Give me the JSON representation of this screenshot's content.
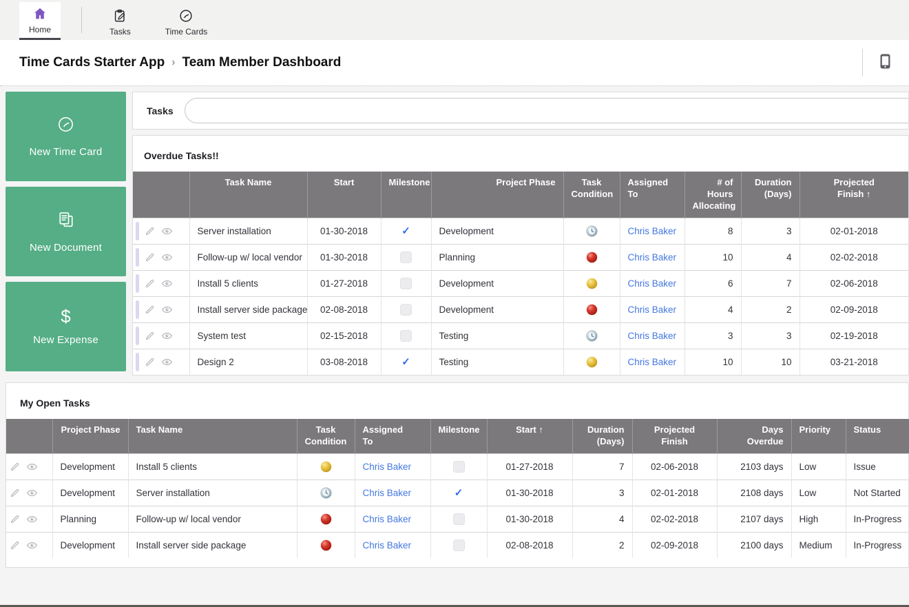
{
  "nav": {
    "tabs": [
      {
        "label": "Home",
        "icon": "home-icon",
        "active": true
      },
      {
        "label": "Tasks",
        "icon": "clipboard-pencil-icon",
        "active": false
      },
      {
        "label": "Time Cards",
        "icon": "clock-icon",
        "active": false
      }
    ]
  },
  "breadcrumb": {
    "app_name": "Time Cards Starter App",
    "separator": "›",
    "page_title": "Team Member Dashboard",
    "mobile_icon": "mobile-phone-icon"
  },
  "sidebar": {
    "buttons": [
      {
        "label": "New Time Card",
        "icon": "clock-icon"
      },
      {
        "label": "New Document",
        "icon": "documents-icon"
      },
      {
        "label": "New Expense",
        "icon": "dollar-icon"
      }
    ]
  },
  "search": {
    "label": "Tasks",
    "value": "",
    "placeholder": ""
  },
  "overdue_table": {
    "title": "Overdue Tasks!!",
    "columns": [
      "",
      "Task Name",
      "Start",
      "Milestone",
      "Project Phase",
      "Task\nCondition",
      "Assigned\nTo",
      "# of Hours\nAllocating",
      "Duration\n(Days)",
      "Projected\nFinish ↑"
    ],
    "rows": [
      {
        "task_name": "Server installation",
        "start": "01-30-2018",
        "milestone": true,
        "project_phase": "Development",
        "task_condition": "clock-ball",
        "assigned_to": "Chris Baker",
        "hours": "8",
        "duration": "3",
        "projected_finish": "02-01-2018"
      },
      {
        "task_name": "Follow-up w/ local vendor",
        "start": "01-30-2018",
        "milestone": false,
        "project_phase": "Planning",
        "task_condition": "red-ball",
        "assigned_to": "Chris Baker",
        "hours": "10",
        "duration": "4",
        "projected_finish": "02-02-2018"
      },
      {
        "task_name": "Install 5 clients",
        "start": "01-27-2018",
        "milestone": false,
        "project_phase": "Development",
        "task_condition": "yellow-ball",
        "assigned_to": "Chris Baker",
        "hours": "6",
        "duration": "7",
        "projected_finish": "02-06-2018"
      },
      {
        "task_name": "Install server side package",
        "start": "02-08-2018",
        "milestone": false,
        "project_phase": "Development",
        "task_condition": "red-ball",
        "assigned_to": "Chris Baker",
        "hours": "4",
        "duration": "2",
        "projected_finish": "02-09-2018"
      },
      {
        "task_name": "System test",
        "start": "02-15-2018",
        "milestone": false,
        "project_phase": "Testing",
        "task_condition": "clock-ball",
        "assigned_to": "Chris Baker",
        "hours": "3",
        "duration": "3",
        "projected_finish": "02-19-2018"
      },
      {
        "task_name": "Design 2",
        "start": "03-08-2018",
        "milestone": true,
        "project_phase": "Testing",
        "task_condition": "yellow-ball",
        "assigned_to": "Chris Baker",
        "hours": "10",
        "duration": "10",
        "projected_finish": "03-21-2018"
      }
    ]
  },
  "open_tasks_table": {
    "title": "My Open Tasks",
    "columns": [
      "",
      "Project Phase",
      "Task Name",
      "Task\nCondition",
      "Assigned\nTo",
      "Milestone",
      "Start ↑",
      "Duration\n(Days)",
      "Projected\nFinish",
      "Days\nOverdue",
      "Priority",
      "Status"
    ],
    "rows": [
      {
        "project_phase": "Development",
        "task_name": "Install 5 clients",
        "task_condition": "yellow-ball",
        "assigned_to": "Chris Baker",
        "milestone": false,
        "start": "01-27-2018",
        "duration": "7",
        "projected_finish": "02-06-2018",
        "days_overdue": "2103 days",
        "priority": "Low",
        "status": "Issue"
      },
      {
        "project_phase": "Development",
        "task_name": "Server installation",
        "task_condition": "clock-ball",
        "assigned_to": "Chris Baker",
        "milestone": true,
        "start": "01-30-2018",
        "duration": "3",
        "projected_finish": "02-01-2018",
        "days_overdue": "2108 days",
        "priority": "Low",
        "status": "Not Started"
      },
      {
        "project_phase": "Planning",
        "task_name": "Follow-up w/ local vendor",
        "task_condition": "red-ball",
        "assigned_to": "Chris Baker",
        "milestone": false,
        "start": "01-30-2018",
        "duration": "4",
        "projected_finish": "02-02-2018",
        "days_overdue": "2107 days",
        "priority": "High",
        "status": "In-Progress"
      },
      {
        "project_phase": "Development",
        "task_name": "Install server side package",
        "task_condition": "red-ball",
        "assigned_to": "Chris Baker",
        "milestone": false,
        "start": "02-08-2018",
        "duration": "2",
        "projected_finish": "02-09-2018",
        "days_overdue": "2100 days",
        "priority": "Medium",
        "status": "In-Progress"
      }
    ]
  },
  "icons": {
    "row_actions": [
      "edit-pencil-icon",
      "view-eye-icon"
    ],
    "condition_legend": [
      "red-ball",
      "yellow-ball",
      "clock-ball"
    ]
  },
  "colors": {
    "green": "#55ae85",
    "header_gray": "#7b797b",
    "link_blue": "#4377e0",
    "check_blue": "#2d6ee8",
    "purple": "#7d57c1",
    "red_ball": "#d6372a",
    "yellow_ball": "#e7c23c",
    "clock_ball": "#aebfca"
  }
}
